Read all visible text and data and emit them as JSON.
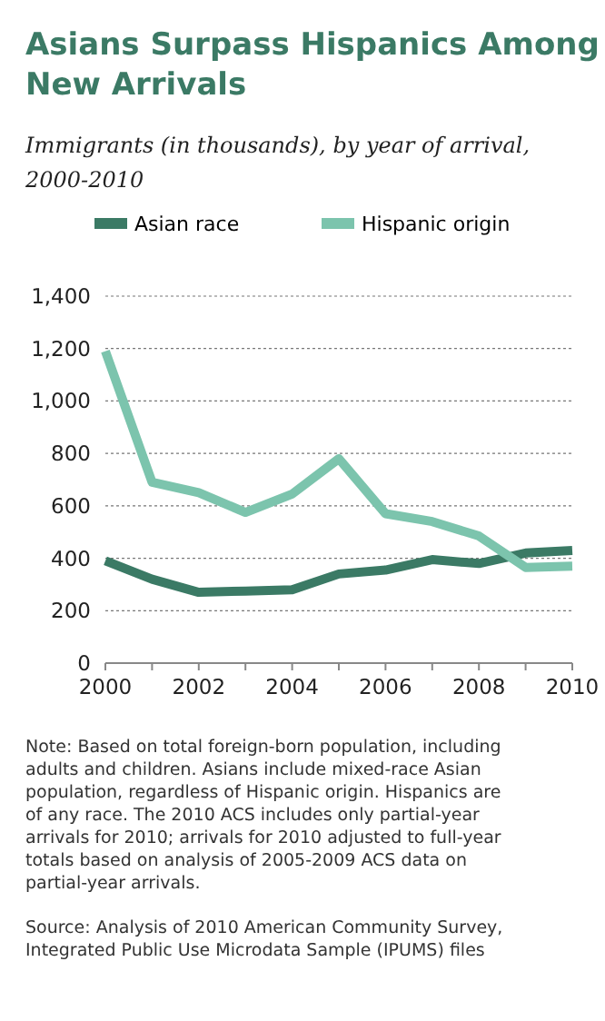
{
  "chart_data": {
    "type": "line",
    "title": "Asians Surpass Hispanics Among New Arrivals",
    "subtitle": "Immigrants (in thousands), by year of arrival, 2000-2010",
    "x": [
      2000,
      2001,
      2002,
      2003,
      2004,
      2005,
      2006,
      2007,
      2008,
      2009,
      2010
    ],
    "series": [
      {
        "name": "Asian race",
        "color": "#3b7a65",
        "values": [
          390,
          320,
          270,
          275,
          280,
          340,
          355,
          395,
          380,
          420,
          430
        ]
      },
      {
        "name": "Hispanic origin",
        "color": "#7cc4ad",
        "values": [
          1190,
          690,
          650,
          575,
          645,
          780,
          570,
          540,
          485,
          365,
          370
        ]
      }
    ],
    "xlim": [
      2000,
      2010
    ],
    "xticks": [
      2000,
      2002,
      2004,
      2006,
      2008,
      2010
    ],
    "ylim": [
      0,
      1400
    ],
    "yticks": [
      0,
      {
        "value": 200,
        "label": "200"
      },
      {
        "value": 400,
        "label": "400"
      },
      {
        "value": 600,
        "label": "600"
      },
      {
        "value": 800,
        "label": "800"
      },
      {
        "value": 1000,
        "label": "1,000"
      },
      {
        "value": 1200,
        "label": "1,200"
      },
      {
        "value": 1400,
        "label": "1,400"
      }
    ],
    "grid": "y",
    "legend": "top",
    "line_style": "solid",
    "marker": "none",
    "annotations": [
      "Note: Based on total foreign-born population, including adults and children. Asians include mixed-race Asian population, regardless of Hispanic origin. Hispanics are of any race. The 2010 ACS includes only partial-year arrivals for 2010; arrivals for 2010 adjusted to full-year totals based on analysis of 2005-2009 ACS data on partial-year arrivals.",
      "Source: Analysis of 2010 American Community Survey, Integrated Public Use Microdata Sample (IPUMS) files"
    ]
  }
}
